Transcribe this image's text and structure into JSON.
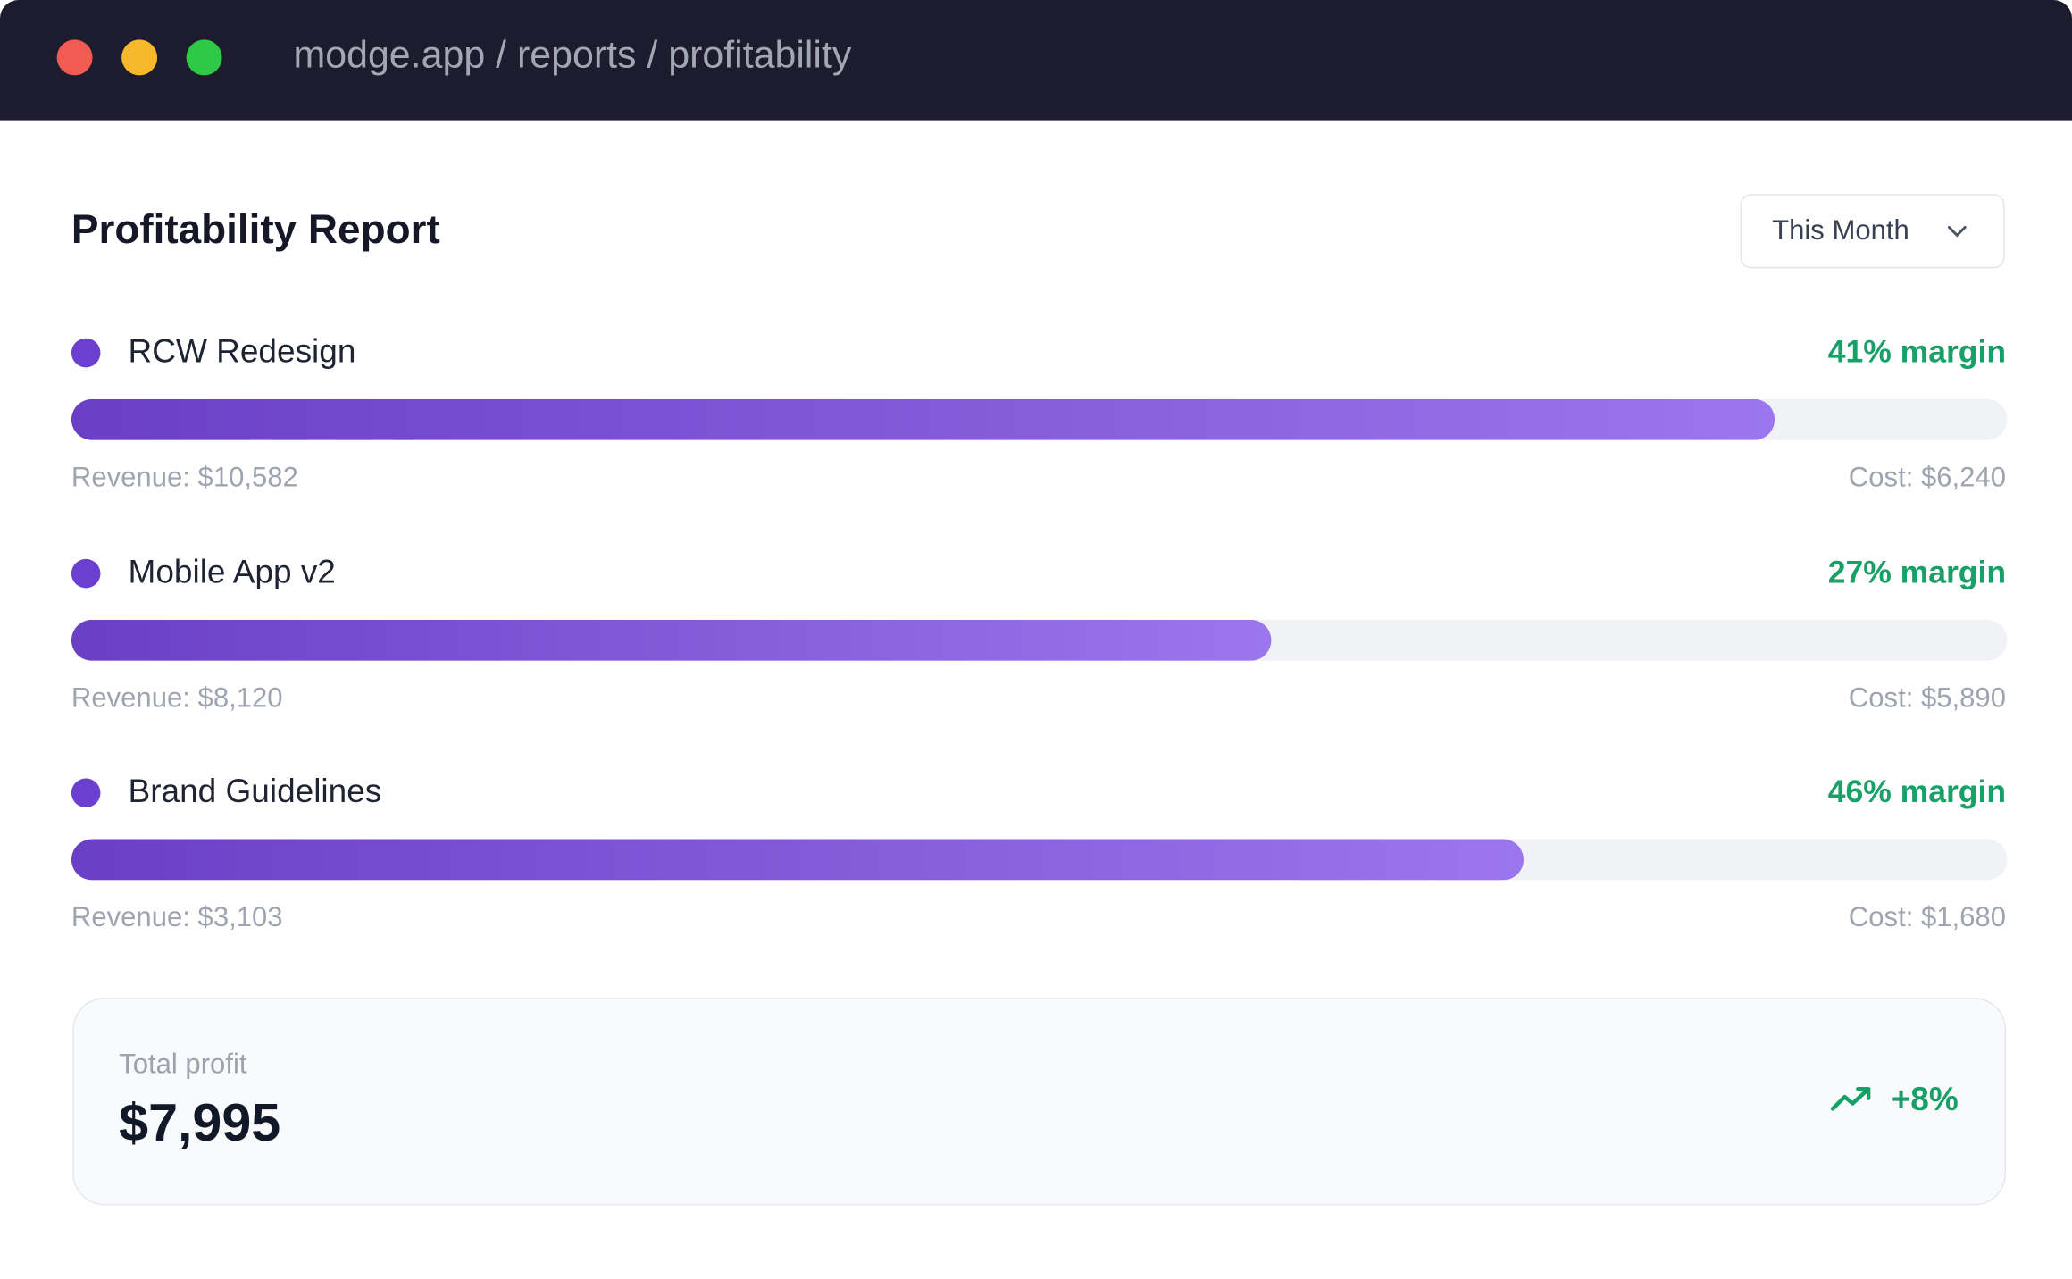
{
  "window": {
    "url": "modge.app / reports / profitability"
  },
  "report": {
    "title": "Profitability Report",
    "period": "This Month",
    "bar_range": [
      0,
      100
    ],
    "projects": [
      {
        "name": "RCW Redesign",
        "margin": "41% margin",
        "bar": 88,
        "revenue": "Revenue: $10,582",
        "cost": "Cost: $6,240"
      },
      {
        "name": "Mobile App v2",
        "margin": "27% margin",
        "bar": 62,
        "revenue": "Revenue: $8,120",
        "cost": "Cost: $5,890"
      },
      {
        "name": "Brand Guidelines",
        "margin": "46% margin",
        "bar": 75,
        "revenue": "Revenue: $3,103",
        "cost": "Cost: $1,680"
      }
    ],
    "total": {
      "label": "Total profit",
      "value": "$7,995",
      "change": "+8%"
    }
  }
}
